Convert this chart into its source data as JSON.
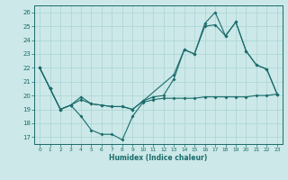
{
  "xlabel": "Humidex (Indice chaleur)",
  "xlim": [
    -0.5,
    23.5
  ],
  "ylim": [
    16.5,
    26.5
  ],
  "yticks": [
    17,
    18,
    19,
    20,
    21,
    22,
    23,
    24,
    25,
    26
  ],
  "xticks": [
    0,
    1,
    2,
    3,
    4,
    5,
    6,
    7,
    8,
    9,
    10,
    11,
    12,
    13,
    14,
    15,
    16,
    17,
    18,
    19,
    20,
    21,
    22,
    23
  ],
  "bg_color": "#cce8e8",
  "grid_color": "#aad4d4",
  "line_color": "#1a6b6b",
  "line1_x": [
    0,
    1,
    2,
    3,
    4,
    5,
    6,
    7,
    8,
    9,
    10,
    11,
    12,
    13,
    14,
    15,
    16,
    17,
    18,
    19,
    20,
    21,
    22,
    23
  ],
  "line1_y": [
    22.0,
    20.5,
    19.0,
    19.3,
    18.5,
    17.5,
    17.2,
    17.2,
    16.8,
    18.5,
    19.5,
    19.7,
    19.8,
    19.8,
    19.8,
    19.8,
    19.9,
    19.9,
    19.9,
    19.9,
    19.9,
    20.0,
    20.0,
    20.1
  ],
  "line2_x": [
    0,
    1,
    2,
    3,
    4,
    5,
    6,
    7,
    8,
    9,
    10,
    11,
    12,
    13,
    14,
    15,
    16,
    17,
    18,
    19,
    20,
    21,
    22,
    23
  ],
  "line2_y": [
    22.0,
    20.5,
    19.0,
    19.3,
    19.7,
    19.4,
    19.3,
    19.2,
    19.2,
    19.0,
    19.6,
    19.9,
    20.0,
    21.2,
    23.3,
    23.0,
    25.0,
    25.1,
    24.3,
    25.3,
    23.2,
    22.2,
    21.9,
    20.1
  ],
  "line3_x": [
    0,
    1,
    2,
    3,
    4,
    5,
    6,
    7,
    8,
    9,
    10,
    13,
    14,
    15,
    16,
    17,
    18,
    19,
    20,
    21,
    22,
    23
  ],
  "line3_y": [
    22.0,
    20.5,
    19.0,
    19.3,
    19.9,
    19.4,
    19.3,
    19.2,
    19.2,
    19.0,
    19.6,
    21.5,
    23.3,
    23.0,
    25.2,
    26.0,
    24.3,
    25.3,
    23.2,
    22.2,
    21.9,
    20.1
  ]
}
